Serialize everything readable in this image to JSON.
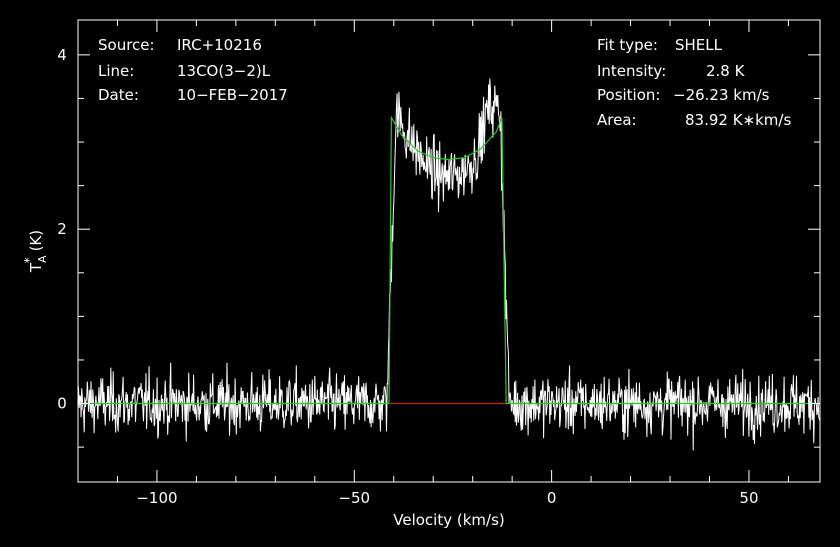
{
  "chart_data": {
    "type": "line",
    "xlabel": "Velocity (km/s)",
    "ylabel": {
      "main": "T",
      "sub": "A",
      "sup": "*",
      "unit": "(K)"
    },
    "xlim": [
      -120,
      68
    ],
    "ylim": [
      -0.9,
      4.4
    ],
    "x_ticks": [
      -100,
      -50,
      0,
      50
    ],
    "y_ticks": [
      0,
      2,
      4
    ],
    "grid": false,
    "info_left": [
      {
        "key": "Source:",
        "value": "IRC+10216"
      },
      {
        "key": "Line:",
        "value": "13CO(3−2)L"
      },
      {
        "key": "Date:",
        "value": "10−FEB−2017"
      }
    ],
    "info_right": [
      {
        "key": "Fit type:",
        "value": "SHELL"
      },
      {
        "key": "Intensity:",
        "value": "2.8 K"
      },
      {
        "key": "Position:",
        "value": "−26.23 km/s"
      },
      {
        "key": "Area:",
        "value": "83.92 K∗km/s"
      }
    ],
    "series": [
      {
        "kind": "spectrum",
        "color": "#ffffff",
        "noise_rms": 0.17,
        "profile": {
          "v_center": -26.23,
          "half_width": 14.3,
          "center_level": 2.6,
          "horn_left": 3.5,
          "horn_right": 3.85,
          "horn_left_v": -39,
          "horn_right_v": -16
        }
      },
      {
        "kind": "fit",
        "color": "#22cc22",
        "x": [
          -120,
          -41.2,
          -40.6,
          -38,
          -34,
          -30,
          -26.23,
          -22,
          -18,
          -14,
          -12.6,
          -11.5,
          68
        ],
        "y": [
          0,
          0,
          3.28,
          3.08,
          2.9,
          2.82,
          2.8,
          2.82,
          2.92,
          3.12,
          3.28,
          0,
          0
        ]
      },
      {
        "kind": "baseline-window",
        "color": "#cc2200",
        "x": [
          -41.2,
          -11.5
        ],
        "y": [
          0,
          0
        ]
      }
    ]
  }
}
